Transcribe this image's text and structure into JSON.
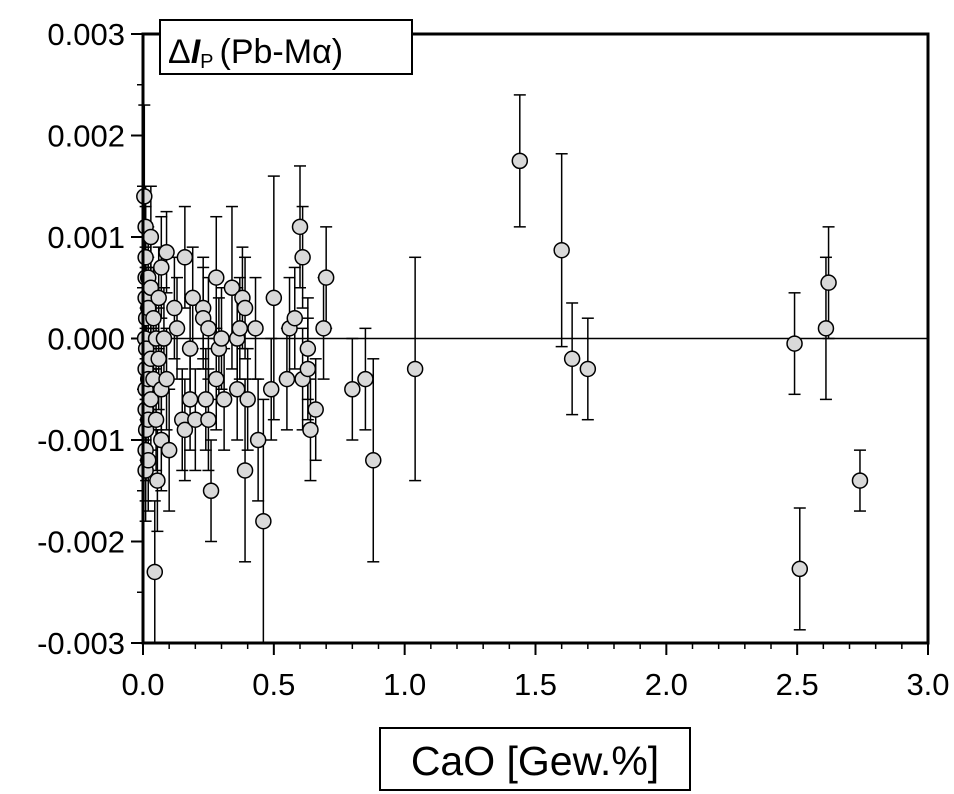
{
  "chart_data": {
    "type": "scatter",
    "title": "ΔI_P (Pb-Mα)",
    "title_parts": {
      "prefix": "Δ",
      "var": "I",
      "sub": "P",
      "suffix": "(Pb-Mα)"
    },
    "xlabel": "CaO [Gew.%]",
    "ylabel": "",
    "xlim": [
      0,
      3.0
    ],
    "ylim": [
      -0.003,
      0.003
    ],
    "x_ticks": [
      "0.0",
      "0.5",
      "1.0",
      "1.5",
      "2.0",
      "2.5",
      "3.0"
    ],
    "x_tick_values": [
      0,
      0.5,
      1.0,
      1.5,
      2.0,
      2.5,
      3.0
    ],
    "y_ticks": [
      "0.003",
      "0.002",
      "0.001",
      "0.000",
      "-0.001",
      "-0.002",
      "-0.003"
    ],
    "y_tick_values": [
      0.003,
      0.002,
      0.001,
      0,
      -0.001,
      -0.002,
      -0.003
    ],
    "reference_line_y": 0,
    "grid": false,
    "marker_color": "#d9d9d9",
    "series": [
      {
        "points": [
          {
            "x": 0.005,
            "y": 0.0014,
            "err": 0.0009
          },
          {
            "x": 0.01,
            "y": 0.0011,
            "err": 0.0004
          },
          {
            "x": 0.01,
            "y": 0.0008,
            "err": 0.0005
          },
          {
            "x": 0.01,
            "y": 0.0006,
            "err": 0.0005
          },
          {
            "x": 0.01,
            "y": 0.0004,
            "err": 0.0005
          },
          {
            "x": 0.012,
            "y": 0.0002,
            "err": 0.0005
          },
          {
            "x": 0.008,
            "y": 0.0,
            "err": 0.0005
          },
          {
            "x": 0.012,
            "y": -0.0001,
            "err": 0.0005
          },
          {
            "x": 0.01,
            "y": -0.0003,
            "err": 0.0005
          },
          {
            "x": 0.01,
            "y": -0.0005,
            "err": 0.0005
          },
          {
            "x": 0.01,
            "y": -0.0007,
            "err": 0.0005
          },
          {
            "x": 0.012,
            "y": -0.0009,
            "err": 0.0005
          },
          {
            "x": 0.01,
            "y": -0.0011,
            "err": 0.0005
          },
          {
            "x": 0.01,
            "y": -0.0013,
            "err": 0.0005
          },
          {
            "x": 0.02,
            "y": 0.0006,
            "err": 0.0005
          },
          {
            "x": 0.02,
            "y": 0.0003,
            "err": 0.0005
          },
          {
            "x": 0.02,
            "y": -0.0004,
            "err": 0.0005
          },
          {
            "x": 0.02,
            "y": -0.0008,
            "err": 0.0005
          },
          {
            "x": 0.02,
            "y": -0.0012,
            "err": 0.0005
          },
          {
            "x": 0.03,
            "y": 0.001,
            "err": 0.0005
          },
          {
            "x": 0.03,
            "y": 0.0005,
            "err": 0.0005
          },
          {
            "x": 0.03,
            "y": -0.0002,
            "err": 0.0005
          },
          {
            "x": 0.03,
            "y": -0.0006,
            "err": 0.0005
          },
          {
            "x": 0.04,
            "y": 0.0002,
            "err": 0.0005
          },
          {
            "x": 0.04,
            "y": -0.0004,
            "err": 0.0005
          },
          {
            "x": 0.045,
            "y": -0.0023,
            "err": 0.0007
          },
          {
            "x": 0.05,
            "y": 0.0,
            "err": 0.0005
          },
          {
            "x": 0.05,
            "y": -0.0008,
            "err": 0.0005
          },
          {
            "x": 0.055,
            "y": -0.0014,
            "err": 0.0005
          },
          {
            "x": 0.06,
            "y": 0.0004,
            "err": 0.0005
          },
          {
            "x": 0.06,
            "y": -0.0002,
            "err": 0.0005
          },
          {
            "x": 0.07,
            "y": 0.0007,
            "err": 0.0005
          },
          {
            "x": 0.07,
            "y": -0.0005,
            "err": 0.0005
          },
          {
            "x": 0.07,
            "y": -0.001,
            "err": 0.0005
          },
          {
            "x": 0.08,
            "y": 0.0,
            "err": 0.0005
          },
          {
            "x": 0.09,
            "y": 0.00085,
            "err": 0.0004
          },
          {
            "x": 0.09,
            "y": -0.0004,
            "err": 0.0005
          },
          {
            "x": 0.1,
            "y": -0.0011,
            "err": 0.0006
          },
          {
            "x": 0.12,
            "y": 0.0003,
            "err": 0.0005
          },
          {
            "x": 0.13,
            "y": 0.0001,
            "err": 0.0005
          },
          {
            "x": 0.15,
            "y": -0.0008,
            "err": 0.0005
          },
          {
            "x": 0.16,
            "y": 0.0008,
            "err": 0.0005
          },
          {
            "x": 0.16,
            "y": -0.0009,
            "err": 0.0005
          },
          {
            "x": 0.18,
            "y": -0.0001,
            "err": 0.0005
          },
          {
            "x": 0.18,
            "y": -0.0006,
            "err": 0.0005
          },
          {
            "x": 0.19,
            "y": 0.0004,
            "err": 0.0005
          },
          {
            "x": 0.2,
            "y": -0.0008,
            "err": 0.0005
          },
          {
            "x": 0.23,
            "y": 0.0003,
            "err": 0.0005
          },
          {
            "x": 0.23,
            "y": 0.0002,
            "err": 0.0005
          },
          {
            "x": 0.24,
            "y": -0.0006,
            "err": 0.0005
          },
          {
            "x": 0.25,
            "y": 0.0001,
            "err": 0.0005
          },
          {
            "x": 0.25,
            "y": -0.0008,
            "err": 0.0005
          },
          {
            "x": 0.26,
            "y": -0.0015,
            "err": 0.0005
          },
          {
            "x": 0.28,
            "y": 0.0006,
            "err": 0.0006
          },
          {
            "x": 0.28,
            "y": -0.0004,
            "err": 0.0005
          },
          {
            "x": 0.29,
            "y": -0.0001,
            "err": 0.0005
          },
          {
            "x": 0.3,
            "y": 0.0,
            "err": 0.0005
          },
          {
            "x": 0.31,
            "y": -0.0006,
            "err": 0.0005
          },
          {
            "x": 0.34,
            "y": 0.0005,
            "err": 0.0008
          },
          {
            "x": 0.36,
            "y": 0.0,
            "err": 0.0005
          },
          {
            "x": 0.36,
            "y": -0.0005,
            "err": 0.0005
          },
          {
            "x": 0.37,
            "y": 0.0001,
            "err": 0.0005
          },
          {
            "x": 0.38,
            "y": 0.0004,
            "err": 0.0005
          },
          {
            "x": 0.39,
            "y": 0.0003,
            "err": 0.0005
          },
          {
            "x": 0.39,
            "y": -0.0013,
            "err": 0.0009
          },
          {
            "x": 0.4,
            "y": -0.0006,
            "err": 0.0005
          },
          {
            "x": 0.43,
            "y": 0.0001,
            "err": 0.0005
          },
          {
            "x": 0.44,
            "y": -0.001,
            "err": 0.0006
          },
          {
            "x": 0.46,
            "y": -0.0018,
            "err": 0.0012
          },
          {
            "x": 0.49,
            "y": -0.0005,
            "err": 0.0005
          },
          {
            "x": 0.5,
            "y": 0.0004,
            "err": 0.0012
          },
          {
            "x": 0.55,
            "y": -0.0004,
            "err": 0.0005
          },
          {
            "x": 0.56,
            "y": 0.0001,
            "err": 0.0005
          },
          {
            "x": 0.58,
            "y": 0.0002,
            "err": 0.0005
          },
          {
            "x": 0.6,
            "y": 0.0011,
            "err": 0.0006
          },
          {
            "x": 0.61,
            "y": 0.0008,
            "err": 0.0005
          },
          {
            "x": 0.61,
            "y": -0.0004,
            "err": 0.0005
          },
          {
            "x": 0.63,
            "y": -0.0001,
            "err": 0.0005
          },
          {
            "x": 0.63,
            "y": -0.0003,
            "err": 0.0005
          },
          {
            "x": 0.64,
            "y": -0.0009,
            "err": 0.0005
          },
          {
            "x": 0.66,
            "y": -0.0007,
            "err": 0.0005
          },
          {
            "x": 0.69,
            "y": 0.0001,
            "err": 0.0005
          },
          {
            "x": 0.7,
            "y": 0.0006,
            "err": 0.0005
          },
          {
            "x": 0.8,
            "y": -0.0005,
            "err": 0.0005
          },
          {
            "x": 0.85,
            "y": -0.0004,
            "err": 0.0005
          },
          {
            "x": 0.88,
            "y": -0.0012,
            "err": 0.001
          },
          {
            "x": 1.04,
            "y": -0.0003,
            "err": 0.0011
          },
          {
            "x": 1.44,
            "y": 0.00175,
            "err": 0.00065
          },
          {
            "x": 1.6,
            "y": 0.00087,
            "err": 0.00095
          },
          {
            "x": 1.64,
            "y": -0.0002,
            "err": 0.00055
          },
          {
            "x": 1.7,
            "y": -0.0003,
            "err": 0.0005
          },
          {
            "x": 2.49,
            "y": -5e-05,
            "err": 0.0005
          },
          {
            "x": 2.51,
            "y": -0.00227,
            "err": 0.0006
          },
          {
            "x": 2.61,
            "y": 0.0001,
            "err": 0.0007
          },
          {
            "x": 2.62,
            "y": 0.00055,
            "err": 0.00055
          },
          {
            "x": 2.74,
            "y": -0.0014,
            "err": 0.0003
          }
        ]
      }
    ]
  }
}
